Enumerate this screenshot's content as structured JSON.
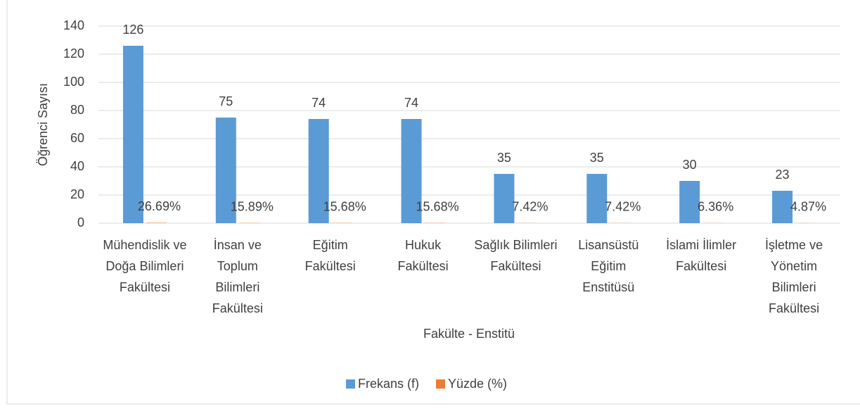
{
  "chart_data": {
    "type": "bar",
    "x_label": "Fakülte - Enstitü",
    "y_label": "Öğrenci Sayısı",
    "categories": [
      "Mühendislik ve Doğa Bilimleri Fakültesi",
      "İnsan ve Toplum Bilimleri Fakültesi",
      "Eğitim Fakültesi",
      "Hukuk Fakültesi",
      "Sağlık Bilimleri Fakültesi",
      "Lisansüstü Eğitim Enstitüsü",
      "İslami İlimler Fakültesi",
      "İşletme ve Yönetim Bilimleri Fakültesi"
    ],
    "series": [
      {
        "name": "Frekans (f)",
        "color": "#5b9bd5",
        "values": [
          126,
          75,
          74,
          74,
          35,
          35,
          30,
          23
        ]
      },
      {
        "name": "Yüzde (%)",
        "color": "#ed7d31",
        "values": [
          0.2669,
          0.1589,
          0.1568,
          0.1568,
          0.0742,
          0.0742,
          0.0636,
          0.0487
        ],
        "value_labels": [
          "26.69%",
          "15.89%",
          "15.68%",
          "15.68%",
          "7.42%",
          "7.42%",
          "6.36%",
          "4.87%"
        ]
      }
    ],
    "ylim": [
      0,
      140
    ],
    "yticks": [
      0,
      20,
      40,
      60,
      80,
      100,
      120,
      140
    ],
    "grid": true,
    "legend": "bottom"
  }
}
